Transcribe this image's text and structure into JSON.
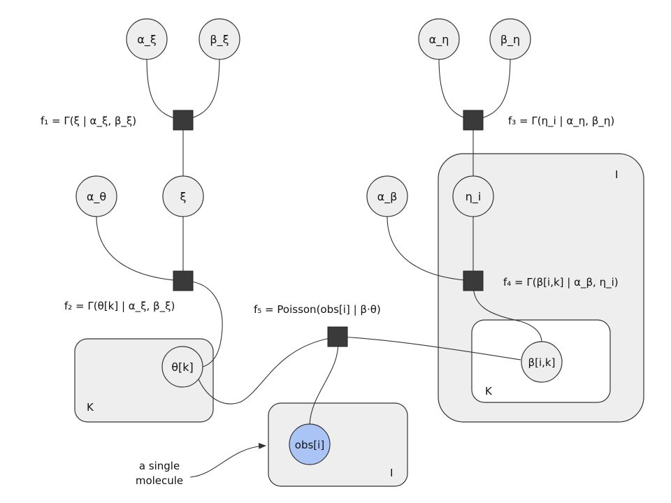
{
  "nodes": {
    "alpha_xi": "α_ξ",
    "beta_xi": "β_ξ",
    "xi": "ξ",
    "alpha_theta": "α_θ",
    "theta_k": "θ[k]",
    "alpha_eta": "α_η",
    "beta_eta": "β_η",
    "eta_i": "η_i",
    "alpha_beta": "α_β",
    "beta_ik": "β[i,k]",
    "obs_i": "obs[i]"
  },
  "factors": {
    "f1": "f₁ = Γ(ξ | α_ξ, β_ξ)",
    "f2": "f₂ = Γ(θ[k] | α_ξ, β_ξ)",
    "f3": "f₃ = Γ(η_i | α_η, β_η)",
    "f4": "f₄ = Γ(β[i,k] | α_β, η_i)",
    "f5": "f₅ = Poisson(obs[i] | β·θ)"
  },
  "plates": {
    "theta_plate": "K",
    "obs_plate": "I",
    "outer_i_plate": "I",
    "inner_k_plate": "K"
  },
  "annotation": {
    "line1": "a single",
    "line2": "molecule"
  },
  "colors": {
    "observed_node": "#a9c4f5",
    "plate_fill": "#eeeeee",
    "factor_fill": "#3a3a3a"
  }
}
